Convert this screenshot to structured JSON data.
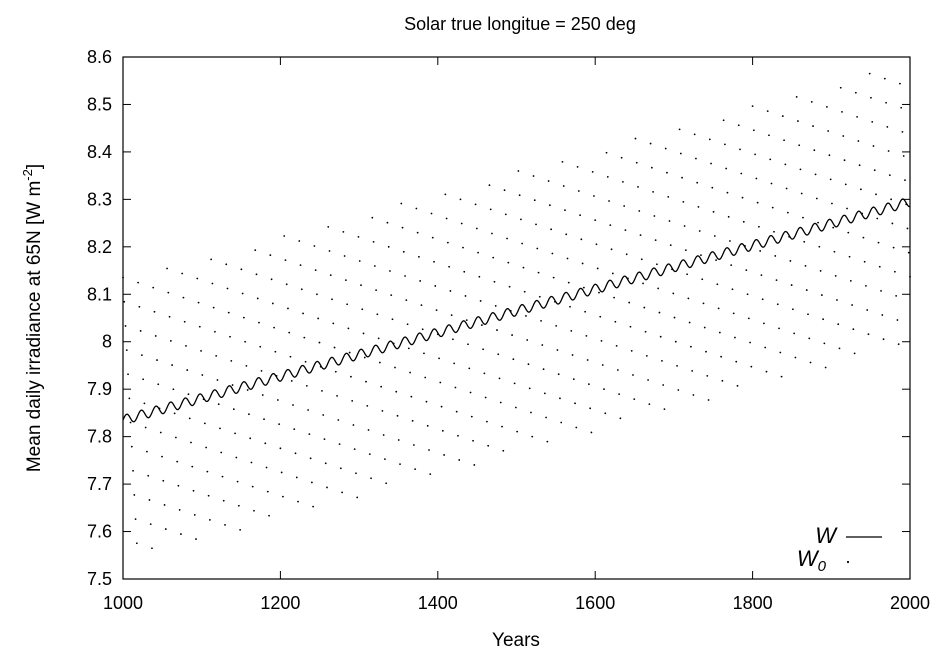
{
  "chart_data": {
    "type": "line",
    "title": "Solar true longitue = 250 deg",
    "xlabel": "Years",
    "ylabel": {
      "text": "Mean daily irradiance at 65N [W m",
      "sup": "-2",
      "suffix": "]"
    },
    "xlim": [
      1000,
      2000
    ],
    "ylim": [
      7.5,
      8.6
    ],
    "xticks": [
      1000,
      1200,
      1400,
      1600,
      1800,
      2000
    ],
    "xtick_labels": [
      "1000",
      "1200",
      "1400",
      "1600",
      "1800",
      "2000"
    ],
    "yticks": [
      7.5,
      7.6,
      7.7,
      7.8,
      7.9,
      8.0,
      8.1,
      8.2,
      8.3,
      8.4,
      8.5,
      8.6
    ],
    "ytick_labels": [
      "7.5",
      "7.6",
      "7.7",
      "7.8",
      "7.9",
      "8",
      "8.1",
      "8.2",
      "8.3",
      "8.4",
      "8.5",
      "8.6"
    ],
    "grid": false,
    "legend_position": "bottom-right",
    "series": [
      {
        "name": "W",
        "sub": "",
        "style": "line",
        "color": "#000000",
        "trend_start": 7.835,
        "trend_end": 8.295,
        "oscillation_amplitude": 0.01,
        "oscillation_period_years": 18.6
      },
      {
        "name": "W",
        "sub": "0",
        "style": "dots",
        "color": "#000000",
        "trend_start": 7.835,
        "trend_end": 8.295,
        "cycle_period_years": 18.6,
        "cycle_half_range": 0.3,
        "sample_step_years": 1.6
      }
    ]
  }
}
